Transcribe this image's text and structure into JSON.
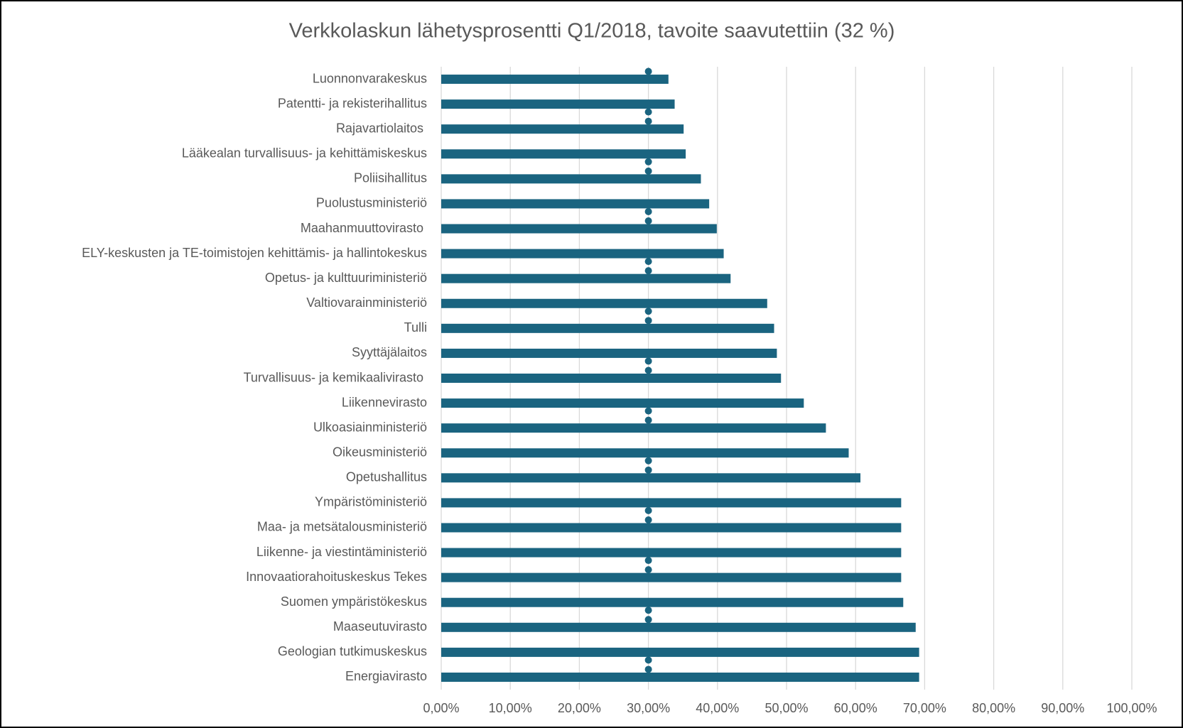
{
  "chart_data": {
    "type": "bar",
    "orientation": "horizontal",
    "title": "Verkkolaskun lähetysprosentti Q1/2018, tavoite saavutettiin (32 %)",
    "categories": [
      "Luonnonvarakeskus",
      "Patentti- ja rekisterihallitus",
      "Rajavartiolaitos ",
      "Lääkealan turvallisuus- ja kehittämiskeskus",
      "Poliisihallitus",
      "Puolustusministeriö",
      "Maahanmuuttovirasto ",
      "ELY-keskusten ja TE-toimistojen kehittämis- ja hallintokeskus",
      "Opetus- ja kulttuuriministeriö",
      "Valtiovarainministeriö",
      "Tulli",
      "Syyttäjälaitos",
      "Turvallisuus- ja kemikaalivirasto ",
      "Liikennevirasto",
      "Ulkoasiainministeriö",
      "Oikeusministeriö",
      "Opetushallitus",
      "Ympäristöministeriö",
      "Maa- ja metsätalousministeriö",
      "Liikenne- ja viestintäministeriö",
      "Innovaatiorahoituskeskus Tekes",
      "Suomen ympäristökeskus",
      "Maaseutuvirasto",
      "Geologian tutkimuskeskus",
      "Energiavirasto"
    ],
    "series": [
      {
        "color": "#1a6480",
        "values": [
          32.9,
          33.8,
          35.1,
          35.4,
          37.6,
          38.8,
          39.9,
          40.9,
          41.9,
          47.2,
          48.2,
          48.6,
          49.2,
          52.5,
          55.7,
          59.0,
          60.7,
          66.6,
          66.6,
          66.6,
          66.6,
          66.9,
          68.7,
          69.2,
          69.2
        ]
      },
      {
        "type": "scatter",
        "color": "#1a6480",
        "values": [
          30,
          30,
          30,
          30,
          30,
          30,
          30,
          30,
          30,
          30,
          30,
          30,
          30,
          30,
          30,
          30,
          30,
          30,
          30,
          30,
          30,
          30,
          30,
          30,
          30
        ]
      }
    ],
    "xlim": [
      0,
      100
    ],
    "xticks": [
      {
        "value": 0,
        "label": "0,00%"
      },
      {
        "value": 10,
        "label": "10,00%"
      },
      {
        "value": 20,
        "label": "20,00%"
      },
      {
        "value": 30,
        "label": "30,00%"
      },
      {
        "value": 40,
        "label": "40,00%"
      },
      {
        "value": 50,
        "label": "50,00%"
      },
      {
        "value": 60,
        "label": "60,00%"
      },
      {
        "value": 70,
        "label": "70,00%"
      },
      {
        "value": 80,
        "label": "80,00%"
      },
      {
        "value": 90,
        "label": "90,00%"
      },
      {
        "value": 100,
        "label": "100,00%"
      }
    ],
    "grid": true
  }
}
